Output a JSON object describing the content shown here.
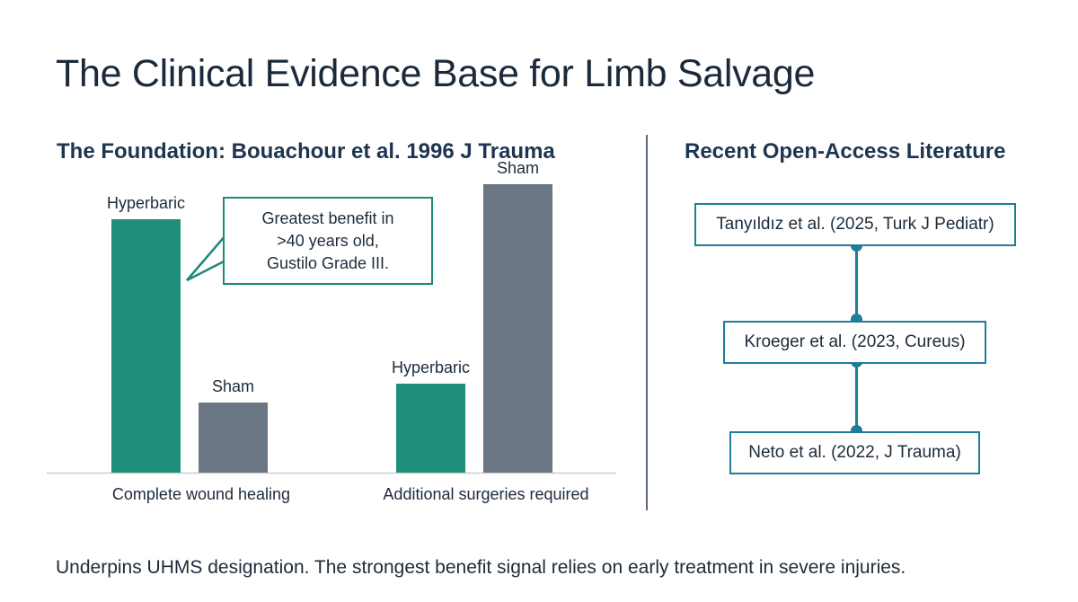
{
  "title": "The Clinical Evidence Base for Limb Salvage",
  "left_panel": {
    "heading_bold": "The Foundation:",
    "heading_rest": " Bouachour et al. 1996 J Trauma",
    "callout_lines": [
      "Greatest benefit in",
      ">40 years old,",
      "Gustilo Grade III."
    ]
  },
  "right_panel": {
    "heading": "Recent Open-Access Literature",
    "items": [
      "Tanyıldız et al. (2025, Turk J Pediatr)",
      "Kroeger et al. (2023, Cureus)",
      "Neto et al. (2022, J Trauma)"
    ]
  },
  "footer": "Underpins UHMS designation. The strongest benefit signal relies on early treatment in severe injuries.",
  "chart_data": {
    "type": "bar",
    "categories": [
      "Complete wound healing",
      "Additional surgeries required"
    ],
    "series": [
      {
        "name": "Hyperbaric",
        "values": [
          94,
          33
        ],
        "color": "#1e8f7a"
      },
      {
        "name": "Sham",
        "values": [
          26,
          107
        ],
        "color": "#6b7785"
      }
    ],
    "ylim": [
      0,
      120
    ],
    "title": "",
    "xlabel": "",
    "ylabel": "",
    "grid": false,
    "legend": "none"
  }
}
